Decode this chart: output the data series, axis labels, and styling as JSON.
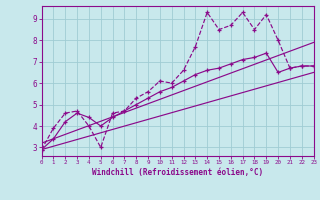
{
  "title": "",
  "xlabel": "Windchill (Refroidissement éolien,°C)",
  "bg_color": "#c8e8ec",
  "line_color": "#8b0a8b",
  "grid_color": "#a0ccd4",
  "xlim": [
    0,
    23
  ],
  "ylim": [
    2.6,
    9.6
  ],
  "xticks": [
    0,
    1,
    2,
    3,
    4,
    5,
    6,
    7,
    8,
    9,
    10,
    11,
    12,
    13,
    14,
    15,
    16,
    17,
    18,
    19,
    20,
    21,
    22,
    23
  ],
  "yticks": [
    3,
    4,
    5,
    6,
    7,
    8,
    9
  ],
  "line1_x": [
    0,
    1,
    2,
    3,
    4,
    5,
    6,
    7,
    8,
    9,
    10,
    11,
    12,
    13,
    14,
    15,
    16,
    17,
    18,
    19,
    20,
    21,
    22,
    23
  ],
  "line1_y": [
    2.9,
    3.9,
    4.6,
    4.7,
    4.0,
    3.0,
    4.6,
    4.7,
    5.3,
    5.6,
    6.1,
    6.0,
    6.6,
    7.7,
    9.3,
    8.5,
    8.7,
    9.3,
    8.5,
    9.2,
    8.0,
    6.7,
    6.8,
    6.8
  ],
  "line2_x": [
    0,
    1,
    2,
    3,
    4,
    5,
    6,
    7,
    8,
    9,
    10,
    11,
    12,
    13,
    14,
    15,
    16,
    17,
    18,
    19,
    20,
    21,
    22,
    23
  ],
  "line2_y": [
    2.9,
    3.4,
    4.2,
    4.6,
    4.4,
    4.0,
    4.4,
    4.7,
    5.0,
    5.3,
    5.6,
    5.8,
    6.1,
    6.4,
    6.6,
    6.7,
    6.9,
    7.1,
    7.2,
    7.4,
    6.5,
    6.7,
    6.8,
    6.8
  ],
  "line3_x": [
    0,
    23
  ],
  "line3_y": [
    3.2,
    7.9
  ],
  "line4_x": [
    0,
    23
  ],
  "line4_y": [
    2.9,
    6.5
  ]
}
